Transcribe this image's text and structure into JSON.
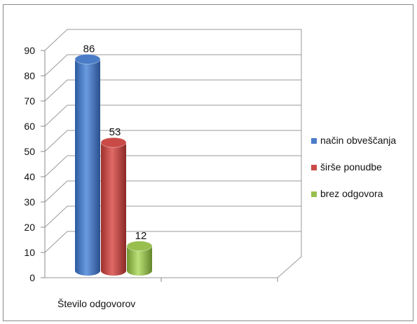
{
  "chart_data": {
    "type": "bar",
    "categories": [
      "Število odgovorov"
    ],
    "series": [
      {
        "name": "način obveščanja",
        "values": [
          86
        ],
        "color": "#4a7cc7"
      },
      {
        "name": "širše ponudbe",
        "values": [
          53
        ],
        "color": "#c94a47"
      },
      {
        "name": "brez odgovora",
        "values": [
          12
        ],
        "color": "#98bf4e"
      }
    ],
    "ylim": [
      0,
      90
    ],
    "yticks": [
      "0",
      "10",
      "20",
      "30",
      "40",
      "50",
      "60",
      "70",
      "80",
      "90"
    ],
    "grid": true,
    "legend_position": "right",
    "data_labels": [
      "86",
      "53",
      "12"
    ],
    "style": "3d-cylinder"
  }
}
